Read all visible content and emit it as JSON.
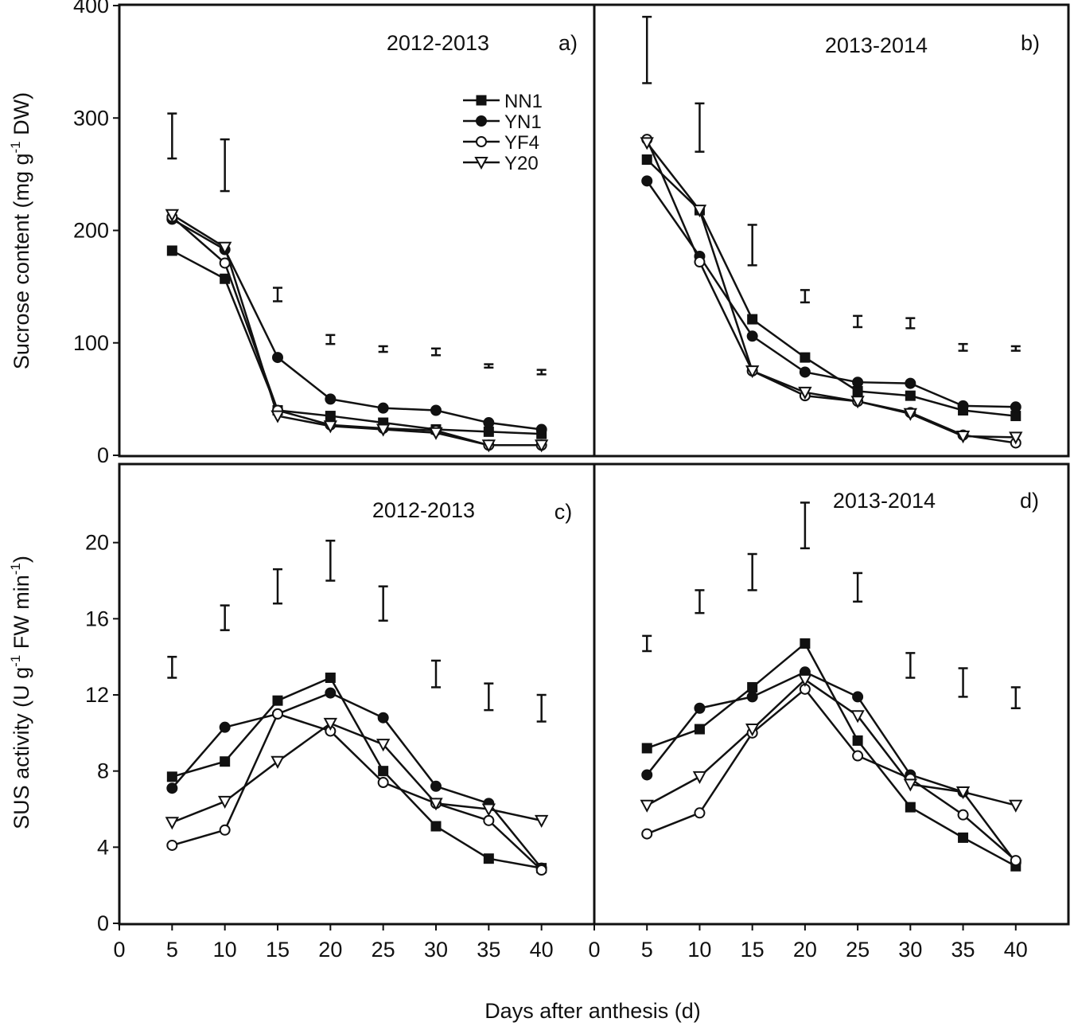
{
  "figure": {
    "xlabel": "Days after anthesis (d)",
    "top_ylabel": {
      "main": "Sucrose content (mg g",
      "sup": "-1",
      "tail": " DW)"
    },
    "bottom_ylabel": {
      "main": "SUS activity (U g",
      "sup1": "-1",
      "mid": " FW min",
      "sup2": "-1",
      "tail": ")"
    },
    "colors": {
      "axis": "#111111",
      "series": "#111111",
      "marker_fill_open": "#ffffff"
    }
  },
  "chart_data": [
    {
      "type": "line",
      "panel": "a",
      "title": "2012-2013",
      "panel_label": "a)",
      "x": [
        5,
        10,
        15,
        20,
        25,
        30,
        35,
        40
      ],
      "xlim": [
        0,
        45
      ],
      "ylim": [
        0,
        400
      ],
      "yticks": [
        0,
        100,
        200,
        300,
        400
      ],
      "show_legend": true,
      "series": [
        {
          "name": "NN1",
          "marker": "square-filled",
          "values": [
            182,
            157,
            40,
            35,
            29,
            23,
            21,
            19
          ]
        },
        {
          "name": "YN1",
          "marker": "circle-filled",
          "values": [
            210,
            183,
            87,
            50,
            42,
            40,
            29,
            23
          ]
        },
        {
          "name": "YF4",
          "marker": "circle-open",
          "values": [
            212,
            171,
            40,
            27,
            24,
            22,
            9,
            9
          ]
        },
        {
          "name": "Y20",
          "marker": "triangle-down-open",
          "values": [
            214,
            185,
            35,
            26,
            23,
            20,
            9,
            9
          ]
        }
      ],
      "error_bars": [
        {
          "x": 5,
          "low": 264,
          "high": 304
        },
        {
          "x": 10,
          "low": 235,
          "high": 281
        },
        {
          "x": 15,
          "low": 137,
          "high": 149
        },
        {
          "x": 20,
          "low": 99,
          "high": 107
        },
        {
          "x": 25,
          "low": 92,
          "high": 97
        },
        {
          "x": 30,
          "low": 89,
          "high": 95
        },
        {
          "x": 35,
          "low": 78,
          "high": 81
        },
        {
          "x": 40,
          "low": 72,
          "high": 76
        }
      ]
    },
    {
      "type": "line",
      "panel": "b",
      "title": "2013-2014",
      "panel_label": "b)",
      "x": [
        5,
        10,
        15,
        20,
        25,
        30,
        35,
        40
      ],
      "xlim": [
        0,
        45
      ],
      "ylim": [
        0,
        400
      ],
      "yticks": [
        0,
        100,
        200,
        300,
        400
      ],
      "show_legend": false,
      "series": [
        {
          "name": "NN1",
          "marker": "square-filled",
          "values": [
            263,
            218,
            121,
            87,
            57,
            53,
            40,
            35
          ]
        },
        {
          "name": "YN1",
          "marker": "circle-filled",
          "values": [
            244,
            177,
            106,
            74,
            65,
            64,
            44,
            43
          ]
        },
        {
          "name": "YF4",
          "marker": "circle-open",
          "values": [
            281,
            172,
            75,
            53,
            48,
            38,
            18,
            11
          ]
        },
        {
          "name": "Y20",
          "marker": "triangle-down-open",
          "values": [
            278,
            218,
            75,
            56,
            48,
            37,
            17,
            16
          ]
        }
      ],
      "error_bars": [
        {
          "x": 5,
          "low": 331,
          "high": 390
        },
        {
          "x": 10,
          "low": 270,
          "high": 313
        },
        {
          "x": 15,
          "low": 169,
          "high": 205
        },
        {
          "x": 20,
          "low": 136,
          "high": 147
        },
        {
          "x": 25,
          "low": 114,
          "high": 124
        },
        {
          "x": 30,
          "low": 113,
          "high": 122
        },
        {
          "x": 35,
          "low": 93,
          "high": 99
        },
        {
          "x": 40,
          "low": 93,
          "high": 97
        }
      ]
    },
    {
      "type": "line",
      "panel": "c",
      "title": "2012-2013",
      "panel_label": "c)",
      "x": [
        5,
        10,
        15,
        20,
        25,
        30,
        35,
        40
      ],
      "xlim": [
        0,
        45
      ],
      "ylim": [
        0,
        24
      ],
      "yticks": [
        0,
        4,
        8,
        12,
        16,
        20
      ],
      "xticks": [
        0,
        5,
        10,
        15,
        20,
        25,
        30,
        35,
        40
      ],
      "show_legend": false,
      "series": [
        {
          "name": "NN1",
          "marker": "square-filled",
          "values": [
            7.7,
            8.5,
            11.7,
            12.9,
            8.0,
            5.1,
            3.4,
            2.9
          ]
        },
        {
          "name": "YN1",
          "marker": "circle-filled",
          "values": [
            7.1,
            10.3,
            11.0,
            12.1,
            10.8,
            7.2,
            6.3,
            2.9
          ]
        },
        {
          "name": "YF4",
          "marker": "circle-open",
          "values": [
            4.1,
            4.9,
            11.0,
            10.1,
            7.4,
            6.3,
            5.4,
            2.8
          ]
        },
        {
          "name": "Y20",
          "marker": "triangle-down-open",
          "values": [
            5.3,
            6.4,
            8.5,
            10.5,
            9.4,
            6.3,
            6.0,
            5.4
          ]
        }
      ],
      "error_bars": [
        {
          "x": 5,
          "low": 12.9,
          "high": 14.0
        },
        {
          "x": 10,
          "low": 15.4,
          "high": 16.7
        },
        {
          "x": 15,
          "low": 16.8,
          "high": 18.6
        },
        {
          "x": 20,
          "low": 18.0,
          "high": 20.1
        },
        {
          "x": 25,
          "low": 15.9,
          "high": 17.7
        },
        {
          "x": 30,
          "low": 12.4,
          "high": 13.8
        },
        {
          "x": 35,
          "low": 11.2,
          "high": 12.6
        },
        {
          "x": 40,
          "low": 10.6,
          "high": 12.0
        }
      ]
    },
    {
      "type": "line",
      "panel": "d",
      "title": "2013-2014",
      "panel_label": "d)",
      "x": [
        5,
        10,
        15,
        20,
        25,
        30,
        35,
        40
      ],
      "xlim": [
        0,
        45
      ],
      "ylim": [
        0,
        24
      ],
      "yticks": [
        0,
        4,
        8,
        12,
        16,
        20
      ],
      "xticks": [
        0,
        5,
        10,
        15,
        20,
        25,
        30,
        35,
        40
      ],
      "show_legend": false,
      "series": [
        {
          "name": "NN1",
          "marker": "square-filled",
          "values": [
            9.2,
            10.2,
            12.4,
            14.7,
            9.6,
            6.1,
            4.5,
            3.0
          ]
        },
        {
          "name": "YN1",
          "marker": "circle-filled",
          "values": [
            7.8,
            11.3,
            11.9,
            13.2,
            11.9,
            7.8,
            6.9,
            3.2
          ]
        },
        {
          "name": "YF4",
          "marker": "circle-open",
          "values": [
            4.7,
            5.8,
            10.0,
            12.3,
            8.8,
            7.6,
            5.7,
            3.3
          ]
        },
        {
          "name": "Y20",
          "marker": "triangle-down-open",
          "values": [
            6.2,
            7.7,
            10.2,
            12.8,
            10.9,
            7.3,
            6.9,
            6.2
          ]
        }
      ],
      "error_bars": [
        {
          "x": 5,
          "low": 14.3,
          "high": 15.1
        },
        {
          "x": 10,
          "low": 16.3,
          "high": 17.5
        },
        {
          "x": 15,
          "low": 17.5,
          "high": 19.4
        },
        {
          "x": 20,
          "low": 19.7,
          "high": 22.1
        },
        {
          "x": 25,
          "low": 16.9,
          "high": 18.4
        },
        {
          "x": 30,
          "low": 12.9,
          "high": 14.2
        },
        {
          "x": 35,
          "low": 11.9,
          "high": 13.4
        },
        {
          "x": 40,
          "low": 11.3,
          "high": 12.4
        }
      ]
    }
  ]
}
